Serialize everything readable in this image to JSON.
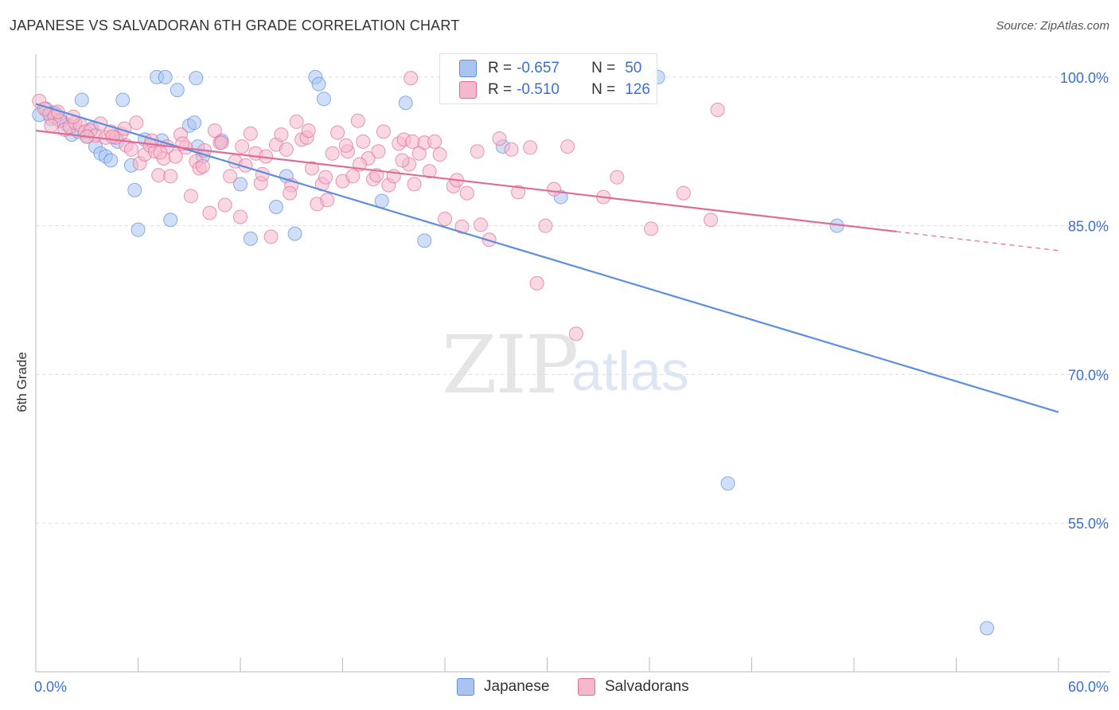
{
  "title": "JAPANESE VS SALVADORAN 6TH GRADE CORRELATION CHART",
  "source": "Source: ZipAtlas.com",
  "watermark": {
    "zip": "ZIP",
    "atlas": "atlas"
  },
  "legend": {
    "rows": [
      {
        "r_label": "R =",
        "r_value": "-0.657",
        "n_label": "N =",
        "n_value": "50",
        "color": "#a9c4f0"
      },
      {
        "r_label": "R =",
        "r_value": "-0.510",
        "n_label": "N =",
        "n_value": "126",
        "color": "#f5b8cc"
      }
    ]
  },
  "bottom_legend": [
    {
      "label": "Japanese",
      "color": "#a9c4f0"
    },
    {
      "label": "Salvadorans",
      "color": "#f5b8cc"
    }
  ],
  "chart_data": {
    "type": "scatter",
    "title": "JAPANESE VS SALVADORAN 6TH GRADE CORRELATION CHART",
    "xlabel": "",
    "ylabel": "6th Grade",
    "xlim": [
      0,
      60
    ],
    "ylim": [
      40,
      102
    ],
    "x_tick_labels": [
      "0.0%",
      "60.0%"
    ],
    "y_ticks": [
      100,
      85,
      70,
      55
    ],
    "y_tick_labels": [
      "100.0%",
      "85.0%",
      "70.0%",
      "55.0%"
    ],
    "grid": true,
    "series": [
      {
        "name": "Japanese",
        "color": "#5b8ee0",
        "fill": "#a9c4f0",
        "trend": {
          "x0": 0,
          "y0": 97.3,
          "x1": 60,
          "y1": 66.2,
          "dashed_from": null
        },
        "points": [
          [
            0.2,
            96.2
          ],
          [
            0.6,
            96.8
          ],
          [
            0.9,
            95.8
          ],
          [
            1.2,
            96.3
          ],
          [
            1.5,
            95.6
          ],
          [
            1.8,
            95.2
          ],
          [
            2.1,
            94.2
          ],
          [
            2.7,
            97.7
          ],
          [
            3.0,
            94.0
          ],
          [
            3.3,
            94.8
          ],
          [
            3.5,
            93.0
          ],
          [
            3.8,
            92.3
          ],
          [
            4.1,
            92.0
          ],
          [
            4.4,
            91.6
          ],
          [
            5.1,
            97.7
          ],
          [
            5.6,
            91.1
          ],
          [
            5.8,
            88.6
          ],
          [
            6.0,
            84.6
          ],
          [
            6.4,
            93.7
          ],
          [
            7.1,
            100.0
          ],
          [
            7.4,
            93.6
          ],
          [
            7.6,
            100.0
          ],
          [
            7.9,
            85.6
          ],
          [
            8.3,
            98.7
          ],
          [
            9.0,
            95.1
          ],
          [
            9.3,
            95.4
          ],
          [
            9.4,
            99.9
          ],
          [
            9.8,
            92.0
          ],
          [
            10.9,
            93.6
          ],
          [
            12.0,
            89.2
          ],
          [
            12.6,
            83.7
          ],
          [
            14.1,
            86.9
          ],
          [
            14.7,
            90.0
          ],
          [
            15.2,
            84.2
          ],
          [
            16.4,
            100.0
          ],
          [
            16.6,
            99.3
          ],
          [
            16.9,
            97.8
          ],
          [
            20.3,
            87.5
          ],
          [
            21.7,
            97.4
          ],
          [
            22.8,
            83.5
          ],
          [
            27.4,
            93.0
          ],
          [
            30.8,
            87.9
          ],
          [
            36.5,
            100.0
          ],
          [
            40.6,
            59.0
          ],
          [
            47.0,
            85.0
          ],
          [
            55.8,
            44.4
          ],
          [
            1.0,
            96.4
          ],
          [
            2.5,
            94.5
          ],
          [
            4.8,
            93.5
          ],
          [
            9.5,
            93.0
          ]
        ]
      },
      {
        "name": "Salvadorans",
        "color": "#e06c96",
        "fill": "#f5b8cc",
        "trend": {
          "x0": 0,
          "y0": 94.6,
          "x1": 60,
          "y1": 82.5,
          "dashed_from": 50.5
        },
        "points": [
          [
            0.2,
            97.6
          ],
          [
            0.5,
            96.8
          ],
          [
            0.8,
            96.3
          ],
          [
            1.1,
            96.0
          ],
          [
            1.4,
            95.6
          ],
          [
            1.7,
            94.7
          ],
          [
            2.0,
            95.0
          ],
          [
            2.3,
            95.4
          ],
          [
            2.6,
            95.2
          ],
          [
            2.9,
            94.5
          ],
          [
            3.2,
            94.6
          ],
          [
            3.5,
            94.1
          ],
          [
            3.8,
            95.3
          ],
          [
            4.1,
            93.9
          ],
          [
            4.4,
            94.5
          ],
          [
            4.7,
            93.9
          ],
          [
            5.0,
            94.3
          ],
          [
            5.3,
            93.1
          ],
          [
            5.6,
            92.7
          ],
          [
            5.9,
            95.4
          ],
          [
            6.1,
            91.3
          ],
          [
            6.4,
            92.2
          ],
          [
            6.7,
            93.1
          ],
          [
            7.0,
            92.5
          ],
          [
            7.2,
            90.1
          ],
          [
            7.5,
            91.8
          ],
          [
            7.7,
            93.0
          ],
          [
            7.9,
            90.0
          ],
          [
            8.2,
            92.0
          ],
          [
            8.5,
            94.2
          ],
          [
            8.8,
            92.9
          ],
          [
            9.1,
            88.0
          ],
          [
            9.4,
            91.5
          ],
          [
            9.6,
            90.8
          ],
          [
            9.9,
            92.6
          ],
          [
            10.2,
            86.3
          ],
          [
            10.5,
            94.6
          ],
          [
            10.8,
            93.4
          ],
          [
            11.1,
            87.1
          ],
          [
            11.4,
            90.0
          ],
          [
            11.7,
            91.5
          ],
          [
            12.0,
            85.9
          ],
          [
            12.3,
            91.1
          ],
          [
            12.6,
            94.3
          ],
          [
            12.9,
            92.3
          ],
          [
            13.2,
            89.3
          ],
          [
            13.5,
            92.0
          ],
          [
            13.8,
            83.9
          ],
          [
            14.1,
            93.2
          ],
          [
            14.4,
            94.2
          ],
          [
            14.7,
            92.7
          ],
          [
            15.0,
            89.1
          ],
          [
            15.3,
            95.5
          ],
          [
            15.6,
            93.7
          ],
          [
            15.9,
            93.9
          ],
          [
            16.2,
            90.8
          ],
          [
            16.5,
            87.2
          ],
          [
            16.8,
            89.2
          ],
          [
            17.1,
            87.6
          ],
          [
            17.4,
            92.3
          ],
          [
            17.7,
            94.4
          ],
          [
            18.0,
            89.5
          ],
          [
            18.3,
            92.5
          ],
          [
            18.6,
            90.0
          ],
          [
            18.9,
            95.6
          ],
          [
            19.2,
            93.5
          ],
          [
            19.5,
            91.8
          ],
          [
            19.8,
            89.7
          ],
          [
            20.1,
            92.5
          ],
          [
            20.4,
            94.5
          ],
          [
            20.7,
            89.1
          ],
          [
            21.0,
            90.0
          ],
          [
            21.3,
            93.3
          ],
          [
            21.6,
            93.7
          ],
          [
            21.9,
            91.2
          ],
          [
            22.2,
            89.2
          ],
          [
            22.5,
            92.3
          ],
          [
            22.8,
            93.4
          ],
          [
            23.1,
            90.5
          ],
          [
            23.4,
            93.5
          ],
          [
            24.0,
            85.7
          ],
          [
            24.5,
            89.0
          ],
          [
            25.0,
            84.9
          ],
          [
            25.3,
            88.3
          ],
          [
            26.1,
            85.1
          ],
          [
            26.6,
            83.6
          ],
          [
            27.2,
            93.8
          ],
          [
            28.3,
            88.4
          ],
          [
            29.0,
            92.9
          ],
          [
            29.4,
            79.2
          ],
          [
            29.9,
            85.0
          ],
          [
            31.2,
            93.0
          ],
          [
            31.7,
            74.1
          ],
          [
            33.3,
            87.9
          ],
          [
            36.1,
            84.7
          ],
          [
            38.0,
            88.3
          ],
          [
            39.6,
            85.6
          ],
          [
            40.0,
            96.7
          ],
          [
            22.0,
            99.9
          ],
          [
            0.9,
            95.1
          ],
          [
            3.0,
            94.0
          ],
          [
            5.2,
            94.8
          ],
          [
            7.3,
            92.4
          ],
          [
            9.8,
            91.0
          ],
          [
            12.1,
            93.0
          ],
          [
            14.9,
            88.3
          ],
          [
            17.0,
            89.9
          ],
          [
            19.0,
            91.2
          ],
          [
            21.5,
            91.6
          ],
          [
            23.7,
            92.2
          ],
          [
            25.9,
            92.5
          ],
          [
            1.3,
            96.5
          ],
          [
            2.2,
            96.0
          ],
          [
            4.5,
            94.0
          ],
          [
            6.8,
            93.6
          ],
          [
            8.6,
            93.3
          ],
          [
            10.9,
            93.4
          ],
          [
            13.3,
            90.2
          ],
          [
            16.0,
            94.6
          ],
          [
            18.2,
            93.1
          ],
          [
            20.0,
            90.1
          ],
          [
            22.1,
            93.5
          ],
          [
            24.7,
            89.6
          ],
          [
            27.9,
            92.7
          ],
          [
            30.4,
            88.7
          ],
          [
            34.1,
            89.9
          ]
        ]
      }
    ]
  }
}
